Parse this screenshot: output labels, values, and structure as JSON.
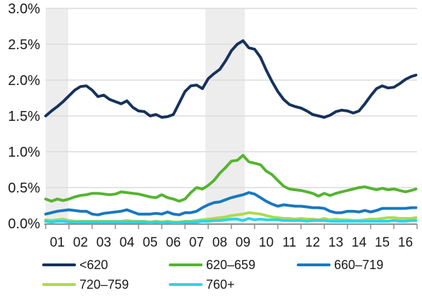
{
  "chart_data": {
    "type": "line",
    "title": "",
    "xlabel": "",
    "ylabel": "",
    "grid": true,
    "legend_position": "bottom",
    "ylim": [
      0,
      3.0
    ],
    "ytick_values": [
      0,
      0.5,
      1.0,
      1.5,
      2.0,
      2.5,
      3.0
    ],
    "ytick_labels": [
      "0.0%",
      "0.5%",
      "1.0%",
      "1.5%",
      "2.0%",
      "2.5%",
      "3.0%"
    ],
    "x_categories": [
      "01",
      "02",
      "03",
      "04",
      "05",
      "06",
      "07",
      "08",
      "09",
      "10",
      "11",
      "12",
      "13",
      "14",
      "15",
      "16"
    ],
    "x_start": 2001.0,
    "x_step": 0.25,
    "x_end": 2016.95,
    "x_range": [
      2001,
      2017
    ],
    "shaded_bands": [
      {
        "x0": 2001.0,
        "x1": 2001.97
      },
      {
        "x0": 2007.88,
        "x1": 2009.58
      }
    ],
    "band_color": "#ededed",
    "grid_color": "#dcdcdc",
    "axis_color": "#8f8f8f",
    "text_color": "#1a1a1a",
    "series": [
      {
        "name": "<620",
        "color": "#16325c",
        "values": [
          1.5,
          1.57,
          1.63,
          1.7,
          1.78,
          1.86,
          1.91,
          1.92,
          1.86,
          1.77,
          1.79,
          1.73,
          1.7,
          1.67,
          1.71,
          1.62,
          1.57,
          1.56,
          1.5,
          1.52,
          1.48,
          1.49,
          1.52,
          1.68,
          1.84,
          1.92,
          1.93,
          1.88,
          2.02,
          2.09,
          2.15,
          2.27,
          2.41,
          2.5,
          2.55,
          2.45,
          2.43,
          2.32,
          2.14,
          1.98,
          1.84,
          1.73,
          1.66,
          1.63,
          1.61,
          1.57,
          1.52,
          1.5,
          1.48,
          1.51,
          1.56,
          1.58,
          1.57,
          1.54,
          1.57,
          1.67,
          1.78,
          1.88,
          1.92,
          1.89,
          1.9,
          1.95,
          2.01,
          2.05,
          2.07
        ]
      },
      {
        "name": "620–659",
        "color": "#55b42f",
        "values": [
          0.34,
          0.31,
          0.34,
          0.32,
          0.34,
          0.37,
          0.39,
          0.4,
          0.42,
          0.42,
          0.41,
          0.4,
          0.41,
          0.44,
          0.43,
          0.42,
          0.41,
          0.39,
          0.37,
          0.36,
          0.4,
          0.36,
          0.34,
          0.31,
          0.34,
          0.43,
          0.5,
          0.48,
          0.53,
          0.6,
          0.7,
          0.78,
          0.87,
          0.88,
          0.95,
          0.86,
          0.84,
          0.82,
          0.73,
          0.68,
          0.6,
          0.52,
          0.48,
          0.47,
          0.46,
          0.44,
          0.42,
          0.38,
          0.42,
          0.39,
          0.42,
          0.44,
          0.46,
          0.48,
          0.5,
          0.51,
          0.49,
          0.47,
          0.49,
          0.47,
          0.48,
          0.46,
          0.44,
          0.46,
          0.48
        ]
      },
      {
        "name": "660–719",
        "color": "#1878bf",
        "values": [
          0.13,
          0.15,
          0.17,
          0.18,
          0.19,
          0.18,
          0.17,
          0.17,
          0.13,
          0.12,
          0.14,
          0.15,
          0.16,
          0.17,
          0.19,
          0.16,
          0.13,
          0.13,
          0.13,
          0.14,
          0.13,
          0.16,
          0.13,
          0.12,
          0.15,
          0.15,
          0.17,
          0.22,
          0.26,
          0.29,
          0.3,
          0.33,
          0.36,
          0.38,
          0.4,
          0.43,
          0.41,
          0.36,
          0.31,
          0.27,
          0.24,
          0.26,
          0.25,
          0.24,
          0.24,
          0.23,
          0.22,
          0.22,
          0.21,
          0.17,
          0.15,
          0.15,
          0.17,
          0.17,
          0.16,
          0.18,
          0.16,
          0.18,
          0.21,
          0.21,
          0.21,
          0.21,
          0.21,
          0.22,
          0.22
        ]
      },
      {
        "name": "720–759",
        "color": "#b0d94e",
        "values": [
          0.05,
          0.04,
          0.05,
          0.06,
          0.04,
          0.03,
          0.03,
          0.03,
          0.03,
          0.03,
          0.03,
          0.03,
          0.03,
          0.03,
          0.04,
          0.03,
          0.03,
          0.03,
          0.02,
          0.03,
          0.02,
          0.03,
          0.02,
          0.02,
          0.03,
          0.03,
          0.04,
          0.05,
          0.06,
          0.07,
          0.08,
          0.09,
          0.11,
          0.12,
          0.13,
          0.15,
          0.14,
          0.13,
          0.11,
          0.09,
          0.08,
          0.07,
          0.07,
          0.06,
          0.07,
          0.06,
          0.06,
          0.05,
          0.07,
          0.05,
          0.06,
          0.05,
          0.05,
          0.04,
          0.04,
          0.05,
          0.06,
          0.06,
          0.07,
          0.08,
          0.08,
          0.07,
          0.07,
          0.07,
          0.08
        ]
      },
      {
        "name": "760+",
        "color": "#2ed4e6",
        "values": [
          0.03,
          0.02,
          0.03,
          0.03,
          0.02,
          0.02,
          0.02,
          0.02,
          0.02,
          0.02,
          0.02,
          0.02,
          0.02,
          0.02,
          0.02,
          0.02,
          0.02,
          0.02,
          0.01,
          0.02,
          0.01,
          0.02,
          0.01,
          0.01,
          0.02,
          0.02,
          0.02,
          0.03,
          0.03,
          0.04,
          0.04,
          0.05,
          0.06,
          0.06,
          0.04,
          0.07,
          0.05,
          0.06,
          0.05,
          0.05,
          0.05,
          0.04,
          0.04,
          0.04,
          0.04,
          0.03,
          0.04,
          0.04,
          0.04,
          0.03,
          0.03,
          0.03,
          0.03,
          0.03,
          0.03,
          0.03,
          0.03,
          0.03,
          0.03,
          0.03,
          0.04,
          0.03,
          0.03,
          0.04,
          0.04
        ]
      }
    ]
  },
  "legend": {
    "items": [
      {
        "label": "<620",
        "color": "#16325c"
      },
      {
        "label": "620–659",
        "color": "#55b42f"
      },
      {
        "label": "660–719",
        "color": "#1878bf"
      },
      {
        "label": "720–759",
        "color": "#b0d94e"
      },
      {
        "label": "760+",
        "color": "#2ed4e6"
      }
    ]
  }
}
